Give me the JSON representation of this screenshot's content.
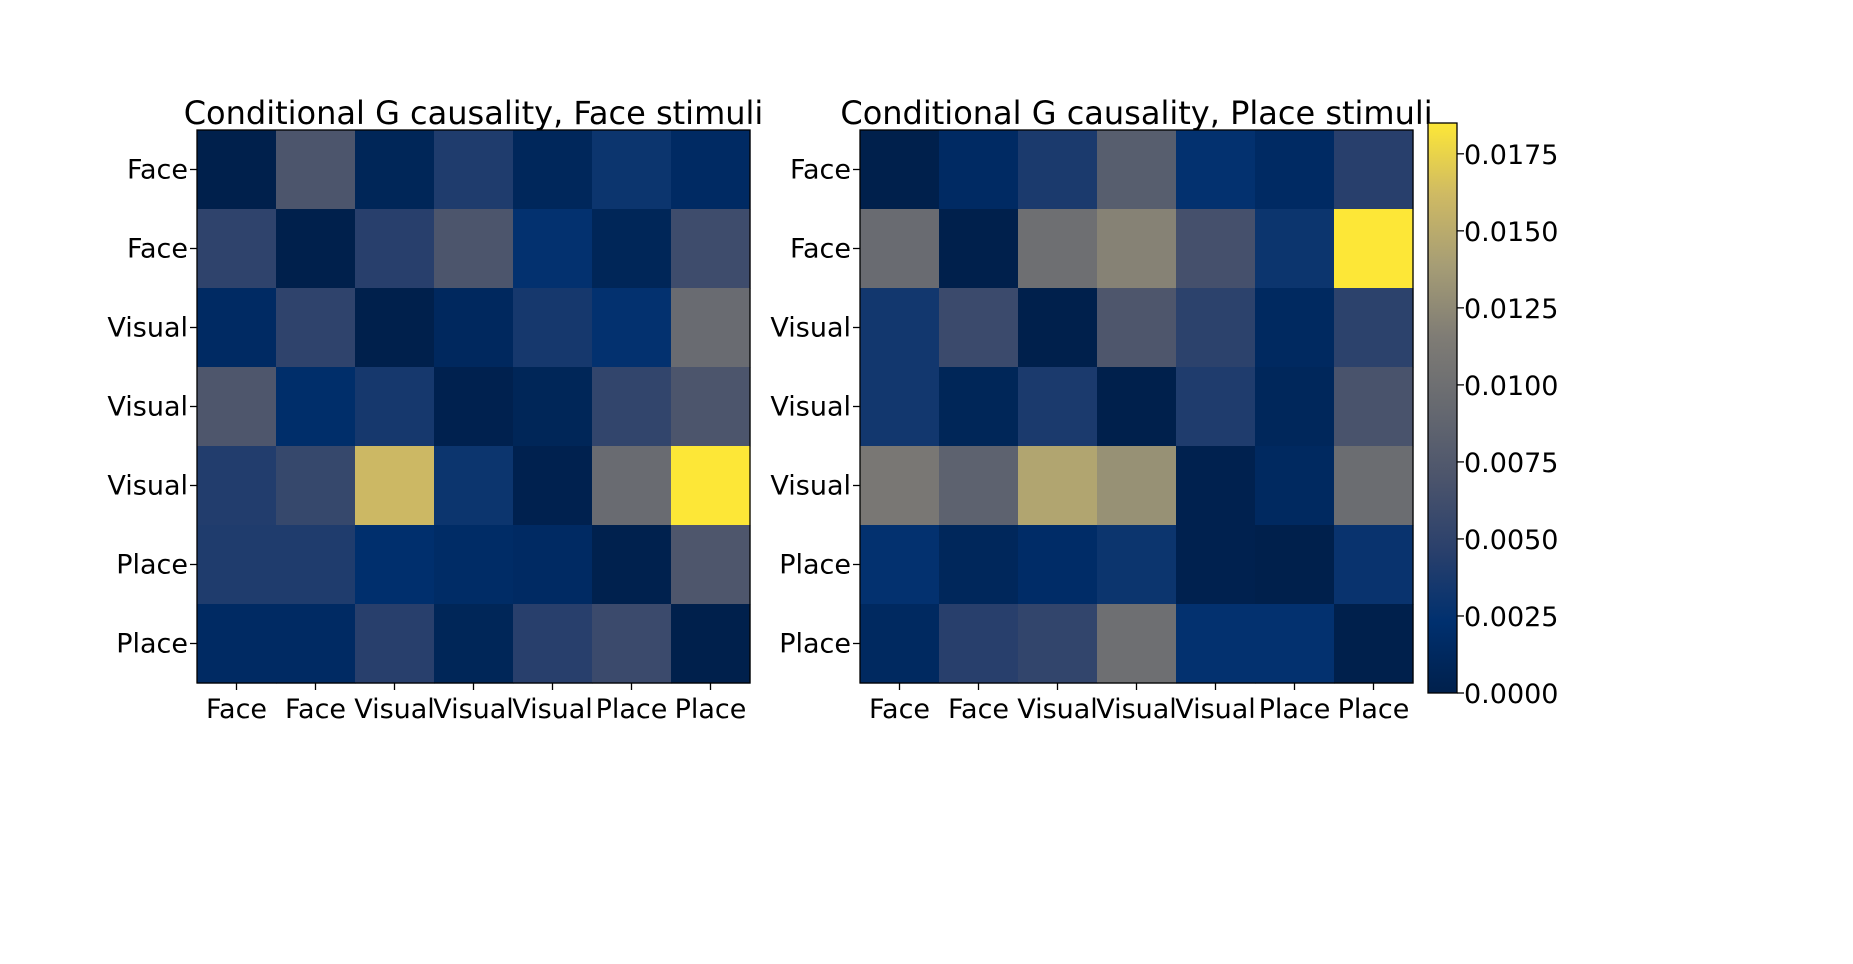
{
  "chart_data": [
    {
      "type": "heatmap",
      "title": "Conditional G causality, Face stimuli",
      "xlabel": "",
      "ylabel": "",
      "row_labels": [
        "Face",
        "Face",
        "Visual",
        "Visual",
        "Visual",
        "Place",
        "Place"
      ],
      "col_labels": [
        "Face",
        "Face",
        "Visual",
        "Visual",
        "Visual",
        "Place",
        "Place"
      ],
      "values": [
        [
          0.0,
          0.007,
          0.0008,
          0.004,
          0.001,
          0.003,
          0.0015
        ],
        [
          0.005,
          0.0,
          0.0045,
          0.007,
          0.0025,
          0.0008,
          0.006
        ],
        [
          0.0015,
          0.005,
          0.0,
          0.0012,
          0.0035,
          0.0025,
          0.0095
        ],
        [
          0.0072,
          0.002,
          0.0035,
          0.0002,
          0.0008,
          0.0052,
          0.007
        ],
        [
          0.0042,
          0.0055,
          0.016,
          0.003,
          0.0002,
          0.0095,
          0.0185
        ],
        [
          0.004,
          0.004,
          0.0022,
          0.0017,
          0.0015,
          0.0001,
          0.0072
        ],
        [
          0.0015,
          0.0015,
          0.0045,
          0.0008,
          0.0045,
          0.0058,
          0.0
        ]
      ]
    },
    {
      "type": "heatmap",
      "title": "Conditional G causality, Place stimuli",
      "xlabel": "",
      "ylabel": "",
      "row_labels": [
        "Face",
        "Face",
        "Visual",
        "Visual",
        "Visual",
        "Place",
        "Place"
      ],
      "col_labels": [
        "Face",
        "Face",
        "Visual",
        "Visual",
        "Visual",
        "Place",
        "Place"
      ],
      "values": [
        [
          0.0,
          0.0015,
          0.0038,
          0.008,
          0.0025,
          0.0015,
          0.0045
        ],
        [
          0.0095,
          0.0,
          0.01,
          0.012,
          0.0065,
          0.003,
          0.0185
        ],
        [
          0.0033,
          0.0058,
          0.0,
          0.0072,
          0.0048,
          0.0013,
          0.0048
        ],
        [
          0.0033,
          0.0008,
          0.0038,
          0.0,
          0.004,
          0.001,
          0.0068
        ],
        [
          0.011,
          0.0085,
          0.0145,
          0.013,
          0.0002,
          0.0013,
          0.0097
        ],
        [
          0.0025,
          0.001,
          0.0018,
          0.003,
          0.0002,
          0.0,
          0.0028
        ],
        [
          0.0013,
          0.0045,
          0.0052,
          0.01,
          0.0025,
          0.0025,
          0.0
        ]
      ]
    }
  ],
  "colorbar": {
    "colormap": "cividis",
    "range": [
      0,
      0.0185
    ],
    "ticks": [
      0.0,
      0.0025,
      0.005,
      0.0075,
      0.01,
      0.0125,
      0.015,
      0.0175
    ],
    "tick_labels": [
      "0.0000",
      "0.0025",
      "0.0050",
      "0.0075",
      "0.0100",
      "0.0125",
      "0.0150",
      "0.0175"
    ],
    "colors": [
      "#00204c",
      "#00306f",
      "#2a406c",
      "#4b546c",
      "#666970",
      "#7f7c75",
      "#a69d75",
      "#cfba63",
      "#fde737"
    ]
  }
}
